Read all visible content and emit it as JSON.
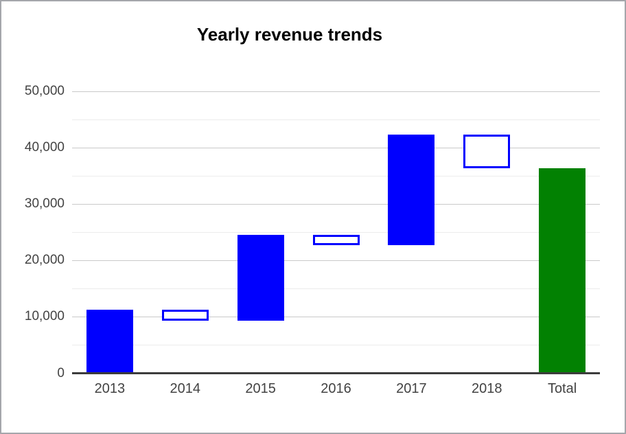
{
  "frame": {
    "border_color": "#a4a6ab",
    "background": "#ffffff"
  },
  "chart_data": {
    "type": "bar",
    "subtype": "waterfall",
    "title": "Yearly revenue trends",
    "xlabel": "",
    "ylabel": "",
    "legend": "none",
    "grid": true,
    "categories": [
      "2013",
      "2014",
      "2015",
      "2016",
      "2017",
      "2018",
      "Total"
    ],
    "bars": [
      {
        "category": "2013",
        "from": 0,
        "to": 11300,
        "delta": 11300,
        "style": "increase"
      },
      {
        "category": "2014",
        "from": 11300,
        "to": 9300,
        "delta": -2000,
        "style": "decrease"
      },
      {
        "category": "2015",
        "from": 9300,
        "to": 24500,
        "delta": 15200,
        "style": "increase"
      },
      {
        "category": "2016",
        "from": 24500,
        "to": 22700,
        "delta": -1800,
        "style": "decrease"
      },
      {
        "category": "2017",
        "from": 22700,
        "to": 42300,
        "delta": 19600,
        "style": "increase"
      },
      {
        "category": "2018",
        "from": 42300,
        "to": 36300,
        "delta": -6000,
        "style": "decrease"
      },
      {
        "category": "Total",
        "from": 0,
        "to": 36300,
        "delta": 36300,
        "style": "total"
      }
    ],
    "cumulative": [
      11300,
      9300,
      24500,
      22700,
      42300,
      36300,
      36300
    ],
    "yaxis": {
      "min": 0,
      "max": 50000,
      "major_step": 10000,
      "minor_step": 5000,
      "tick_labels": [
        "0",
        "10,000",
        "20,000",
        "30,000",
        "40,000",
        "50,000"
      ]
    },
    "colors": {
      "increase_fill": "#0000fe",
      "decrease_fill": "#ffffff",
      "decrease_border": "#0000fe",
      "total_fill": "#028102",
      "grid_major": "#c9c9c9",
      "grid_minor": "#ececec",
      "baseline": "#3c3c3c",
      "axis_label": "#424242",
      "title": "#000000"
    }
  }
}
